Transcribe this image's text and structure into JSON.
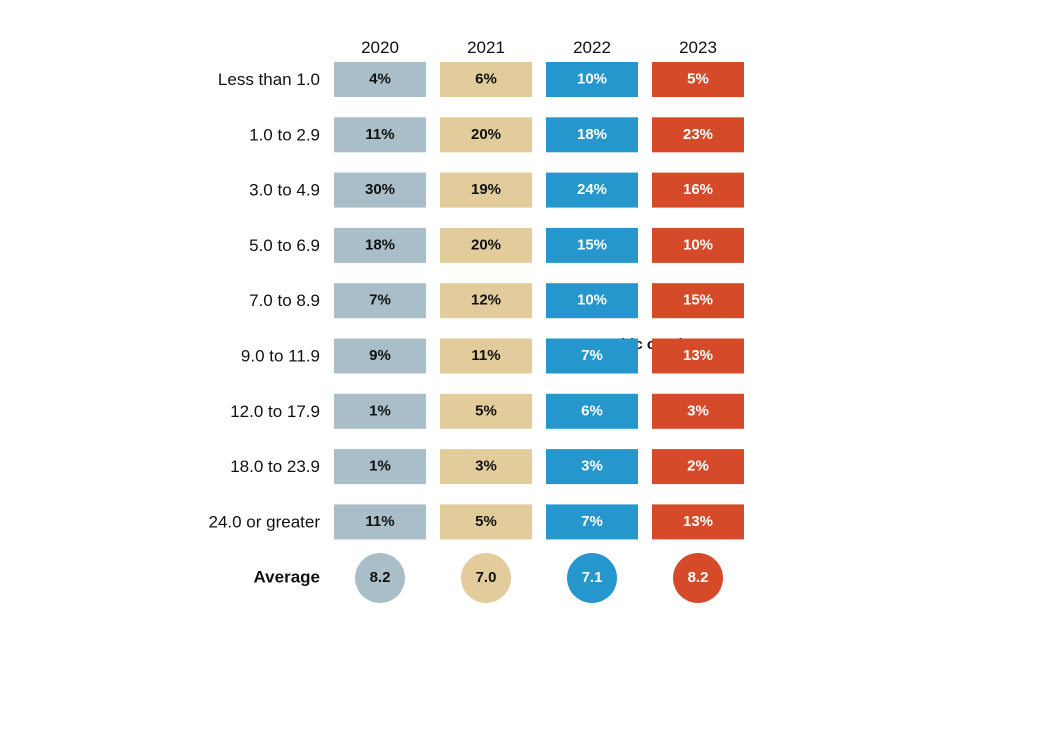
{
  "chart_data": {
    "type": "table",
    "columns": [
      "2020",
      "2021",
      "2022",
      "2023"
    ],
    "rows": [
      "Less than 1.0",
      "1.0 to 2.9",
      "3.0 to 4.9",
      "5.0 to 6.9",
      "7.0 to 8.9",
      "9.0 to 11.9",
      "12.0 to 17.9",
      "18.0 to 23.9",
      "24.0 or greater"
    ],
    "values": [
      [
        "4%",
        "6%",
        "10%",
        "5%"
      ],
      [
        "11%",
        "20%",
        "18%",
        "23%"
      ],
      [
        "30%",
        "19%",
        "24%",
        "16%"
      ],
      [
        "18%",
        "20%",
        "15%",
        "10%"
      ],
      [
        "7%",
        "12%",
        "10%",
        "15%"
      ],
      [
        "9%",
        "11%",
        "7%",
        "13%"
      ],
      [
        "1%",
        "5%",
        "6%",
        "3%"
      ],
      [
        "1%",
        "3%",
        "3%",
        "2%"
      ],
      [
        "11%",
        "5%",
        "7%",
        "13%"
      ]
    ],
    "average_label": "Average",
    "averages": [
      "8.2",
      "7.0",
      "7.1",
      "8.2"
    ],
    "column_colors": [
      "#a9bec8",
      "#e2cc9b",
      "#2597cd",
      "#d54b2a"
    ],
    "column_text_colors": [
      "#111111",
      "#111111",
      "#ffffff",
      "#ffffff"
    ],
    "overlapping_text": "Graphic continues"
  }
}
